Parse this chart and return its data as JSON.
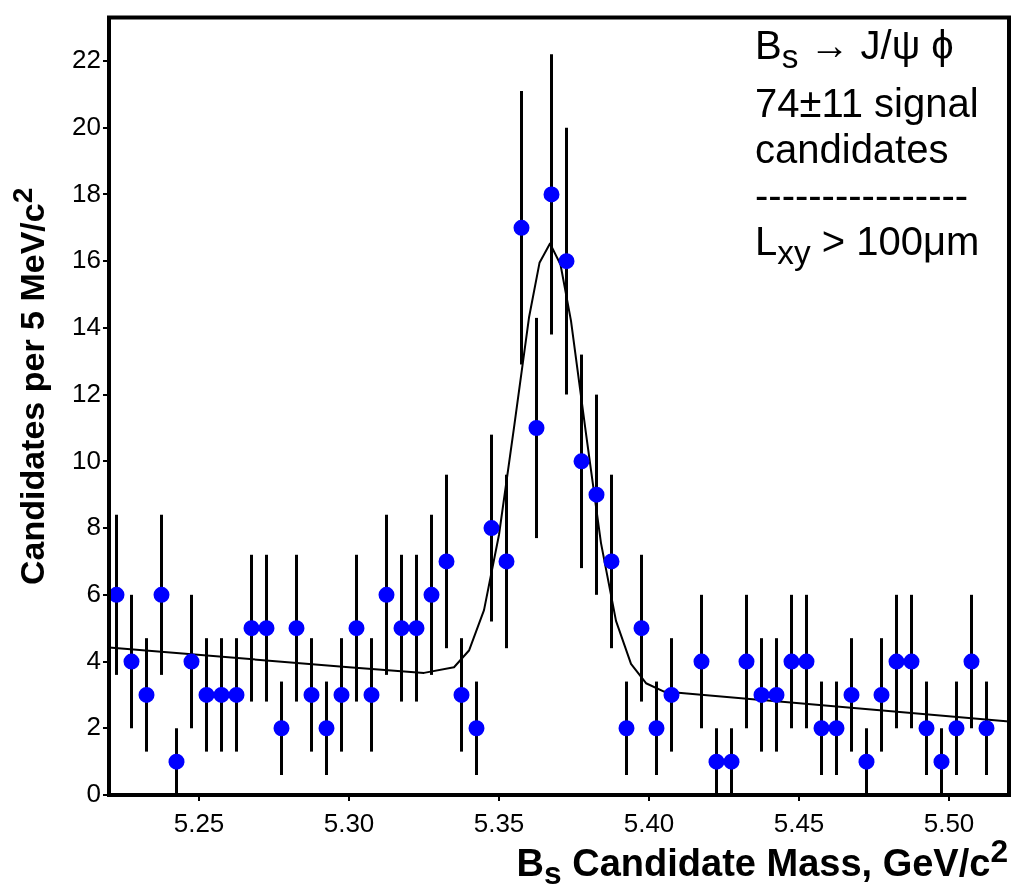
{
  "chart_data": {
    "type": "scatter",
    "xlabel": "B$_{s}$ Candidate Mass, GeV/c$^{2}$",
    "ylabel": "Candidates per 5 MeV/c$^{2}$",
    "annotations": [
      "B$_{s}$ → J/ψ ϕ",
      "74±11 signal",
      "candidates",
      "----------------",
      "L$_{xy}$ > 100μm"
    ],
    "xlim": [
      5.22,
      5.52
    ],
    "xticks": [
      {
        "value": 5.25,
        "label": "5.25"
      },
      {
        "value": 5.3,
        "label": "5.30"
      },
      {
        "value": 5.35,
        "label": "5.35"
      },
      {
        "value": 5.4,
        "label": "5.40"
      },
      {
        "value": 5.45,
        "label": "5.45"
      },
      {
        "value": 5.5,
        "label": "5.50"
      }
    ],
    "ylim": [
      0,
      23.3
    ],
    "yticks": [
      0,
      2,
      4,
      6,
      8,
      10,
      12,
      14,
      16,
      18,
      20,
      22
    ],
    "legend": false,
    "series": [
      {
        "color": "#0000ff",
        "marker": "circle",
        "x": [
          5.2225,
          5.2275,
          5.2325,
          5.2375,
          5.2425,
          5.2475,
          5.2525,
          5.2575,
          5.2625,
          5.2675,
          5.2725,
          5.2775,
          5.2825,
          5.2875,
          5.2925,
          5.2975,
          5.3025,
          5.3075,
          5.3125,
          5.3175,
          5.3225,
          5.3275,
          5.3325,
          5.3375,
          5.3425,
          5.3475,
          5.3525,
          5.3575,
          5.3625,
          5.3675,
          5.3725,
          5.3775,
          5.3825,
          5.3875,
          5.3925,
          5.3975,
          5.4025,
          5.4075,
          5.4125,
          5.4175,
          5.4225,
          5.4275,
          5.4325,
          5.4375,
          5.4425,
          5.4475,
          5.4525,
          5.4575,
          5.4625,
          5.4675,
          5.4725,
          5.4775,
          5.4825,
          5.4875,
          5.4925,
          5.4975,
          5.5025,
          5.5075,
          5.5125
        ],
        "values": [
          6,
          4,
          3,
          6,
          1,
          4,
          3,
          3,
          3,
          5,
          5,
          2,
          5,
          3,
          2,
          3,
          5,
          3,
          6,
          5,
          5,
          6,
          7,
          3,
          2,
          8,
          7,
          17,
          11,
          18,
          16,
          10,
          9,
          7,
          2,
          5,
          2,
          3,
          null,
          4,
          1,
          1,
          4,
          3,
          3,
          4,
          4,
          2,
          2,
          3,
          1,
          3,
          4,
          4,
          2,
          1,
          2,
          4,
          2
        ],
        "errors": [
          2.4,
          2,
          1.7,
          2.4,
          1,
          2,
          1.7,
          1.7,
          1.7,
          2.2,
          2.2,
          1.4,
          2.2,
          1.7,
          1.4,
          1.7,
          2.2,
          1.7,
          2.4,
          2.2,
          2.2,
          2.4,
          2.6,
          1.7,
          1.4,
          2.8,
          2.6,
          4.1,
          3.3,
          4.2,
          4,
          3.2,
          3,
          2.6,
          1.4,
          2.2,
          1.4,
          1.7,
          null,
          2,
          1,
          1,
          2,
          1.7,
          1.7,
          2,
          2,
          1.4,
          1.4,
          1.7,
          1,
          1.7,
          2,
          2,
          1.4,
          1,
          1.4,
          2,
          1.4
        ]
      },
      {
        "type": "line",
        "color": "#000000",
        "marker": "none",
        "line_style": "solid",
        "x": [
          5.22,
          5.3,
          5.325,
          5.335,
          5.34,
          5.345,
          5.35,
          5.355,
          5.36,
          5.3635,
          5.367,
          5.3705,
          5.374,
          5.379,
          5.384,
          5.389,
          5.394,
          5.399,
          5.405,
          5.52
        ],
        "values": [
          4.42,
          3.83,
          3.66,
          3.83,
          4.33,
          5.54,
          7.8,
          11.01,
          14.31,
          15.95,
          16.53,
          15.9,
          14.21,
          10.83,
          7.55,
          5.22,
          3.93,
          3.35,
          3.1,
          2.2
        ]
      }
    ]
  }
}
